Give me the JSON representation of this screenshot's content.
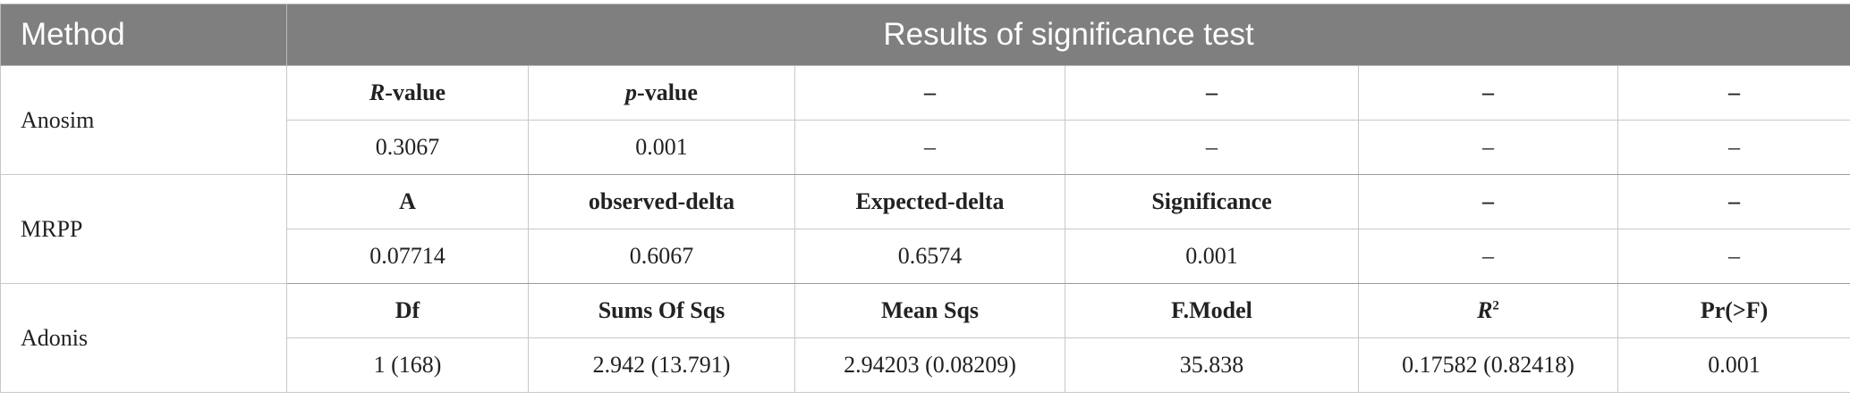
{
  "header": {
    "method": "Method",
    "results": "Results of significance test"
  },
  "anosim": {
    "name": "Anosim",
    "head_r_italic": "R",
    "head_r_rest": "-value",
    "head_p_italic": "p",
    "head_p_rest": "-value",
    "head_rest": [
      "–",
      "–",
      "–",
      "–"
    ],
    "values": [
      "0.3067",
      "0.001",
      "–",
      "–",
      "–",
      "–"
    ]
  },
  "mrpp": {
    "name": "MRPP",
    "head": [
      "A",
      "observed-delta",
      "Expected-delta",
      "Significance",
      "–",
      "–"
    ],
    "values": [
      "0.07714",
      "0.6067",
      "0.6574",
      "0.001",
      "–",
      "–"
    ]
  },
  "adonis": {
    "name": "Adonis",
    "head": [
      "Df",
      "Sums Of Sqs",
      "Mean Sqs",
      "F.Model"
    ],
    "head_r2_italic": "R",
    "head_r2_sup": "2",
    "head_last": "Pr(>F)",
    "values": [
      "1 (168)",
      "2.942 (13.791)",
      "2.94203 (0.08209)",
      "35.838",
      "0.17582 (0.82418)",
      "0.001"
    ]
  }
}
